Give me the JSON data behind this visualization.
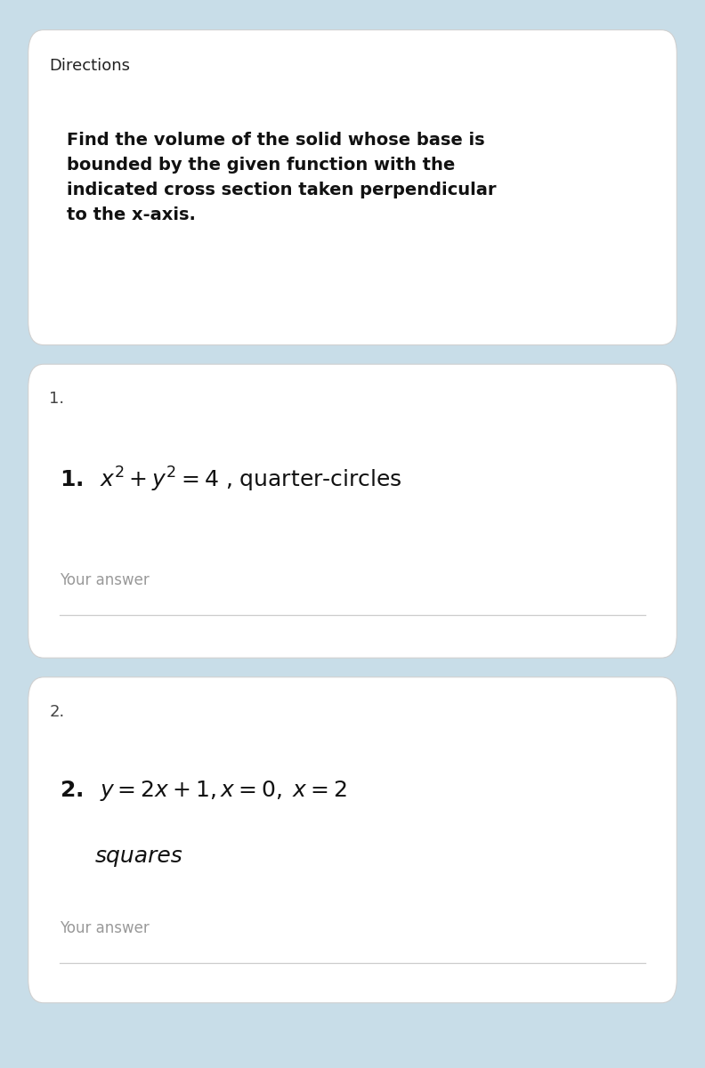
{
  "background_color": "#c8dde8",
  "card_color": "#ffffff",
  "directions_title": "Directions",
  "directions_title_fontsize": 13,
  "directions_title_color": "#222222",
  "directions_body": "Find the volume of the solid whose base is\nbounded by the given function with the\nindicated cross section taken perpendicular\nto the x-axis.",
  "directions_body_fontsize": 14,
  "directions_body_color": "#111111",
  "q1_number_label": "1.",
  "q1_number_fontsize": 13,
  "q1_number_color": "#444444",
  "q1_math": "$\\mathbf{1.}\\;\\; x^2 + y^2 = 4$ , quarter-circles",
  "q1_math_fontsize": 18,
  "q1_math_color": "#111111",
  "q1_answer_label": "Your answer",
  "q1_answer_fontsize": 12,
  "q1_answer_color": "#999999",
  "q2_number_label": "2.",
  "q2_number_fontsize": 13,
  "q2_number_color": "#444444",
  "q2_math_line1": "$\\mathbf{2.}\\;\\; y = 2x + 1, x = 0,\\; x = 2$",
  "q2_math_line2": "squares",
  "q2_math_fontsize": 18,
  "q2_math_color": "#111111",
  "q2_answer_label": "Your answer",
  "q2_answer_fontsize": 12,
  "q2_answer_color": "#999999",
  "card_edge_color": "#d0d0d0",
  "line_color": "#cccccc"
}
